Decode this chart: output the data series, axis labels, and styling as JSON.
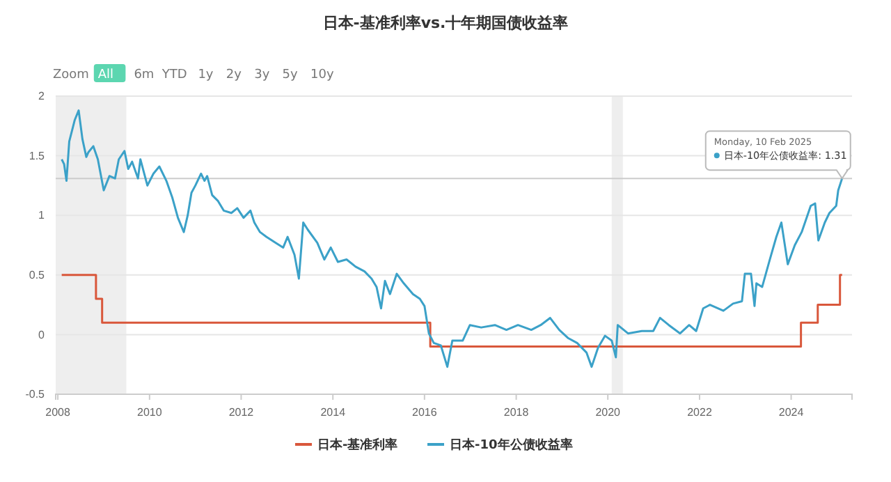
{
  "chart_data": {
    "type": "line",
    "title": "日本-基准利率vs.十年期国债收益率",
    "xlim": [
      "2007-12-15",
      "2025-04-30"
    ],
    "xticks": [
      {
        "value": "2008-01-01",
        "label": "2008"
      },
      {
        "value": "2010-01-01",
        "label": "2010"
      },
      {
        "value": "2012-01-01",
        "label": "2012"
      },
      {
        "value": "2014-01-01",
        "label": "2014"
      },
      {
        "value": "2016-01-01",
        "label": "2016"
      },
      {
        "value": "2018-01-01",
        "label": "2018"
      },
      {
        "value": "2020-01-01",
        "label": "2020"
      },
      {
        "value": "2022-01-01",
        "label": "2022"
      },
      {
        "value": "2024-01-01",
        "label": "2024"
      }
    ],
    "ylim": [
      -0.5,
      2
    ],
    "yticks": [
      -0.5,
      0,
      0.5,
      1,
      1.5,
      2
    ],
    "grid": "y",
    "legend": "bottom",
    "marker": "none",
    "line_style": "solid",
    "bands": [
      {
        "axis": "x",
        "from": "2007-12-15",
        "to": "2009-06-30",
        "color": "#eeeeee"
      },
      {
        "axis": "x",
        "from": "2020-02-01",
        "to": "2020-04-30",
        "color": "#eeeeee"
      }
    ],
    "ref_lines": [
      {
        "axis": "y",
        "value": 1.31,
        "color": "#cccccc"
      }
    ],
    "annotations": [
      "Zoom",
      "All",
      "6m",
      "YTD",
      "1y",
      "2y",
      "3y",
      "5y",
      "10y",
      {
        "text": "日本-10年公债收益率: 1.31",
        "x": "2025-02-10",
        "y": 1.31
      },
      "Monday, 10 Feb 2025"
    ],
    "series": [
      {
        "name": "日本-基准利率",
        "type": "step",
        "color": "#d9573b",
        "x": [
          "2008-02-01",
          "2008-10-31",
          "2008-12-19",
          "2016-02-16",
          "2024-03-19",
          "2024-07-31",
          "2025-01-24",
          "2025-02-10"
        ],
        "values": [
          0.5,
          0.3,
          0.1,
          -0.1,
          0.1,
          0.25,
          0.5,
          0.5
        ]
      },
      {
        "name": "日本-10年公债收益率",
        "color": "#3ba1c8",
        "x": [
          "2008-02-01",
          "2008-02-20",
          "2008-03-10",
          "2008-04-01",
          "2008-05-15",
          "2008-06-15",
          "2008-07-15",
          "2008-08-15",
          "2008-09-01",
          "2008-10-10",
          "2008-11-15",
          "2009-01-01",
          "2009-02-15",
          "2009-04-01",
          "2009-05-01",
          "2009-06-15",
          "2009-07-15",
          "2009-08-15",
          "2009-10-01",
          "2009-10-20",
          "2009-12-15",
          "2010-02-01",
          "2010-03-20",
          "2010-05-15",
          "2010-07-01",
          "2010-08-15",
          "2010-10-01",
          "2010-11-01",
          "2010-12-01",
          "2011-01-01",
          "2011-02-15",
          "2011-03-15",
          "2011-04-05",
          "2011-05-15",
          "2011-07-01",
          "2011-08-15",
          "2011-10-15",
          "2011-12-01",
          "2012-01-20",
          "2012-03-15",
          "2012-04-15",
          "2012-05-30",
          "2012-07-20",
          "2012-10-01",
          "2012-12-01",
          "2013-01-05",
          "2013-03-01",
          "2013-04-05",
          "2013-05-10",
          "2013-06-15",
          "2013-08-30",
          "2013-10-25",
          "2013-12-15",
          "2014-02-10",
          "2014-04-20",
          "2014-07-01",
          "2014-09-10",
          "2014-11-05",
          "2014-12-15",
          "2015-01-20",
          "2015-02-20",
          "2015-04-01",
          "2015-05-25",
          "2015-07-20",
          "2015-10-01",
          "2015-11-25",
          "2016-01-01",
          "2016-02-05",
          "2016-03-15",
          "2016-05-10",
          "2016-07-01",
          "2016-08-10",
          "2016-11-01",
          "2016-12-28",
          "2017-03-28",
          "2017-07-15",
          "2017-10-15",
          "2018-01-15",
          "2018-05-01",
          "2018-07-15",
          "2018-09-28",
          "2018-12-10",
          "2019-02-20",
          "2019-05-01",
          "2019-07-15",
          "2019-08-25",
          "2019-10-15",
          "2019-12-10",
          "2020-02-01",
          "2020-03-05",
          "2020-03-20",
          "2020-06-10",
          "2020-09-28",
          "2020-12-28",
          "2021-02-20",
          "2021-05-01",
          "2021-07-30",
          "2021-10-10",
          "2021-12-05",
          "2022-01-30",
          "2022-03-25",
          "2022-07-10",
          "2022-09-25",
          "2022-12-05",
          "2022-12-28",
          "2023-02-15",
          "2023-03-15",
          "2023-03-30",
          "2023-05-15",
          "2023-07-15",
          "2023-09-05",
          "2023-10-15",
          "2023-12-05",
          "2024-01-30",
          "2024-03-25",
          "2024-06-05",
          "2024-07-10",
          "2024-08-05",
          "2024-09-25",
          "2024-11-01",
          "2024-12-25",
          "2025-01-10",
          "2025-02-10"
        ],
        "values": [
          1.47,
          1.43,
          1.29,
          1.62,
          1.8,
          1.88,
          1.64,
          1.49,
          1.53,
          1.58,
          1.47,
          1.21,
          1.33,
          1.31,
          1.47,
          1.54,
          1.39,
          1.45,
          1.31,
          1.47,
          1.25,
          1.35,
          1.41,
          1.29,
          1.15,
          0.98,
          0.86,
          1.0,
          1.19,
          1.25,
          1.35,
          1.29,
          1.33,
          1.17,
          1.12,
          1.04,
          1.02,
          1.06,
          0.98,
          1.04,
          0.94,
          0.86,
          0.82,
          0.77,
          0.73,
          0.82,
          0.67,
          0.47,
          0.94,
          0.88,
          0.77,
          0.63,
          0.73,
          0.61,
          0.63,
          0.57,
          0.53,
          0.47,
          0.4,
          0.22,
          0.45,
          0.34,
          0.51,
          0.43,
          0.34,
          0.3,
          0.24,
          0.01,
          -0.07,
          -0.09,
          -0.27,
          -0.05,
          -0.05,
          0.08,
          0.06,
          0.08,
          0.04,
          0.08,
          0.04,
          0.08,
          0.14,
          0.04,
          -0.03,
          -0.07,
          -0.15,
          -0.27,
          -0.11,
          -0.01,
          -0.05,
          -0.19,
          0.08,
          0.01,
          0.03,
          0.03,
          0.14,
          0.08,
          0.01,
          0.08,
          0.03,
          0.22,
          0.25,
          0.2,
          0.26,
          0.28,
          0.51,
          0.51,
          0.24,
          0.43,
          0.4,
          0.63,
          0.82,
          0.94,
          0.59,
          0.75,
          0.86,
          1.08,
          1.1,
          0.79,
          0.94,
          1.02,
          1.08,
          1.21,
          1.31
        ]
      }
    ]
  }
}
